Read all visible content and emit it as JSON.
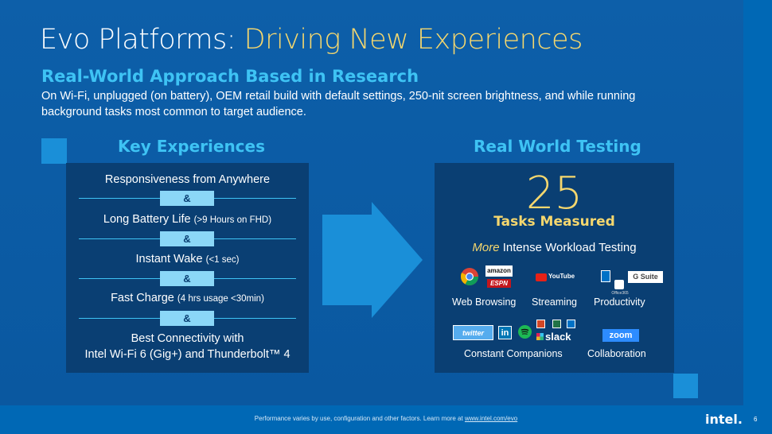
{
  "slide": {
    "title_main": "Evo Platforms: ",
    "title_accent": "Driving New Experiences",
    "subtitle": "Real-World Approach Based in Research",
    "description": "On Wi-Fi, unplugged (on battery), OEM retail build with default settings, 250-nit screen brightness, and while running background tasks most common to target audience."
  },
  "key_experiences": {
    "heading": "Key Experiences",
    "amp": "&",
    "items": [
      {
        "text": "Responsiveness from Anywhere",
        "note": ""
      },
      {
        "text": "Long Battery Life ",
        "note": "(>9 Hours on FHD)"
      },
      {
        "text": "Instant Wake ",
        "note": "(<1 sec)"
      },
      {
        "text": "Fast Charge ",
        "note": "(4 hrs usage <30min)"
      },
      {
        "text": "Best Connectivity with",
        "note": ""
      }
    ],
    "last_line": "Intel Wi-Fi 6 (Gig+) and Thunderbolt™ 4"
  },
  "real_world": {
    "heading": "Real World Testing",
    "number": "25",
    "tasks_label": "Tasks Measured",
    "more_italic": "More",
    "more_rest": " Intense Workload Testing",
    "categories": {
      "web": "Web Browsing",
      "streaming": "Streaming",
      "productivity": "Productivity",
      "companions": "Constant Companions",
      "collaboration": "Collaboration"
    },
    "logos": {
      "amazon": "amazon",
      "espn": "ESPN",
      "youtube": "YouTube",
      "gsuite": "G Suite",
      "office": "Office365",
      "twitter": "twitter",
      "linkedin": "in",
      "slack": "slack",
      "zoom": "zoom"
    }
  },
  "footer": {
    "note": "Performance varies by use, configuration and other factors.  Learn more at ",
    "link": "www.intel.com/evo",
    "brand": "intel.",
    "page": "6"
  },
  "colors": {
    "background": "#0b5ea8",
    "accent_yellow": "#f5d76e",
    "accent_cyan": "#3ec3f4",
    "panel": "#0a3f73"
  }
}
